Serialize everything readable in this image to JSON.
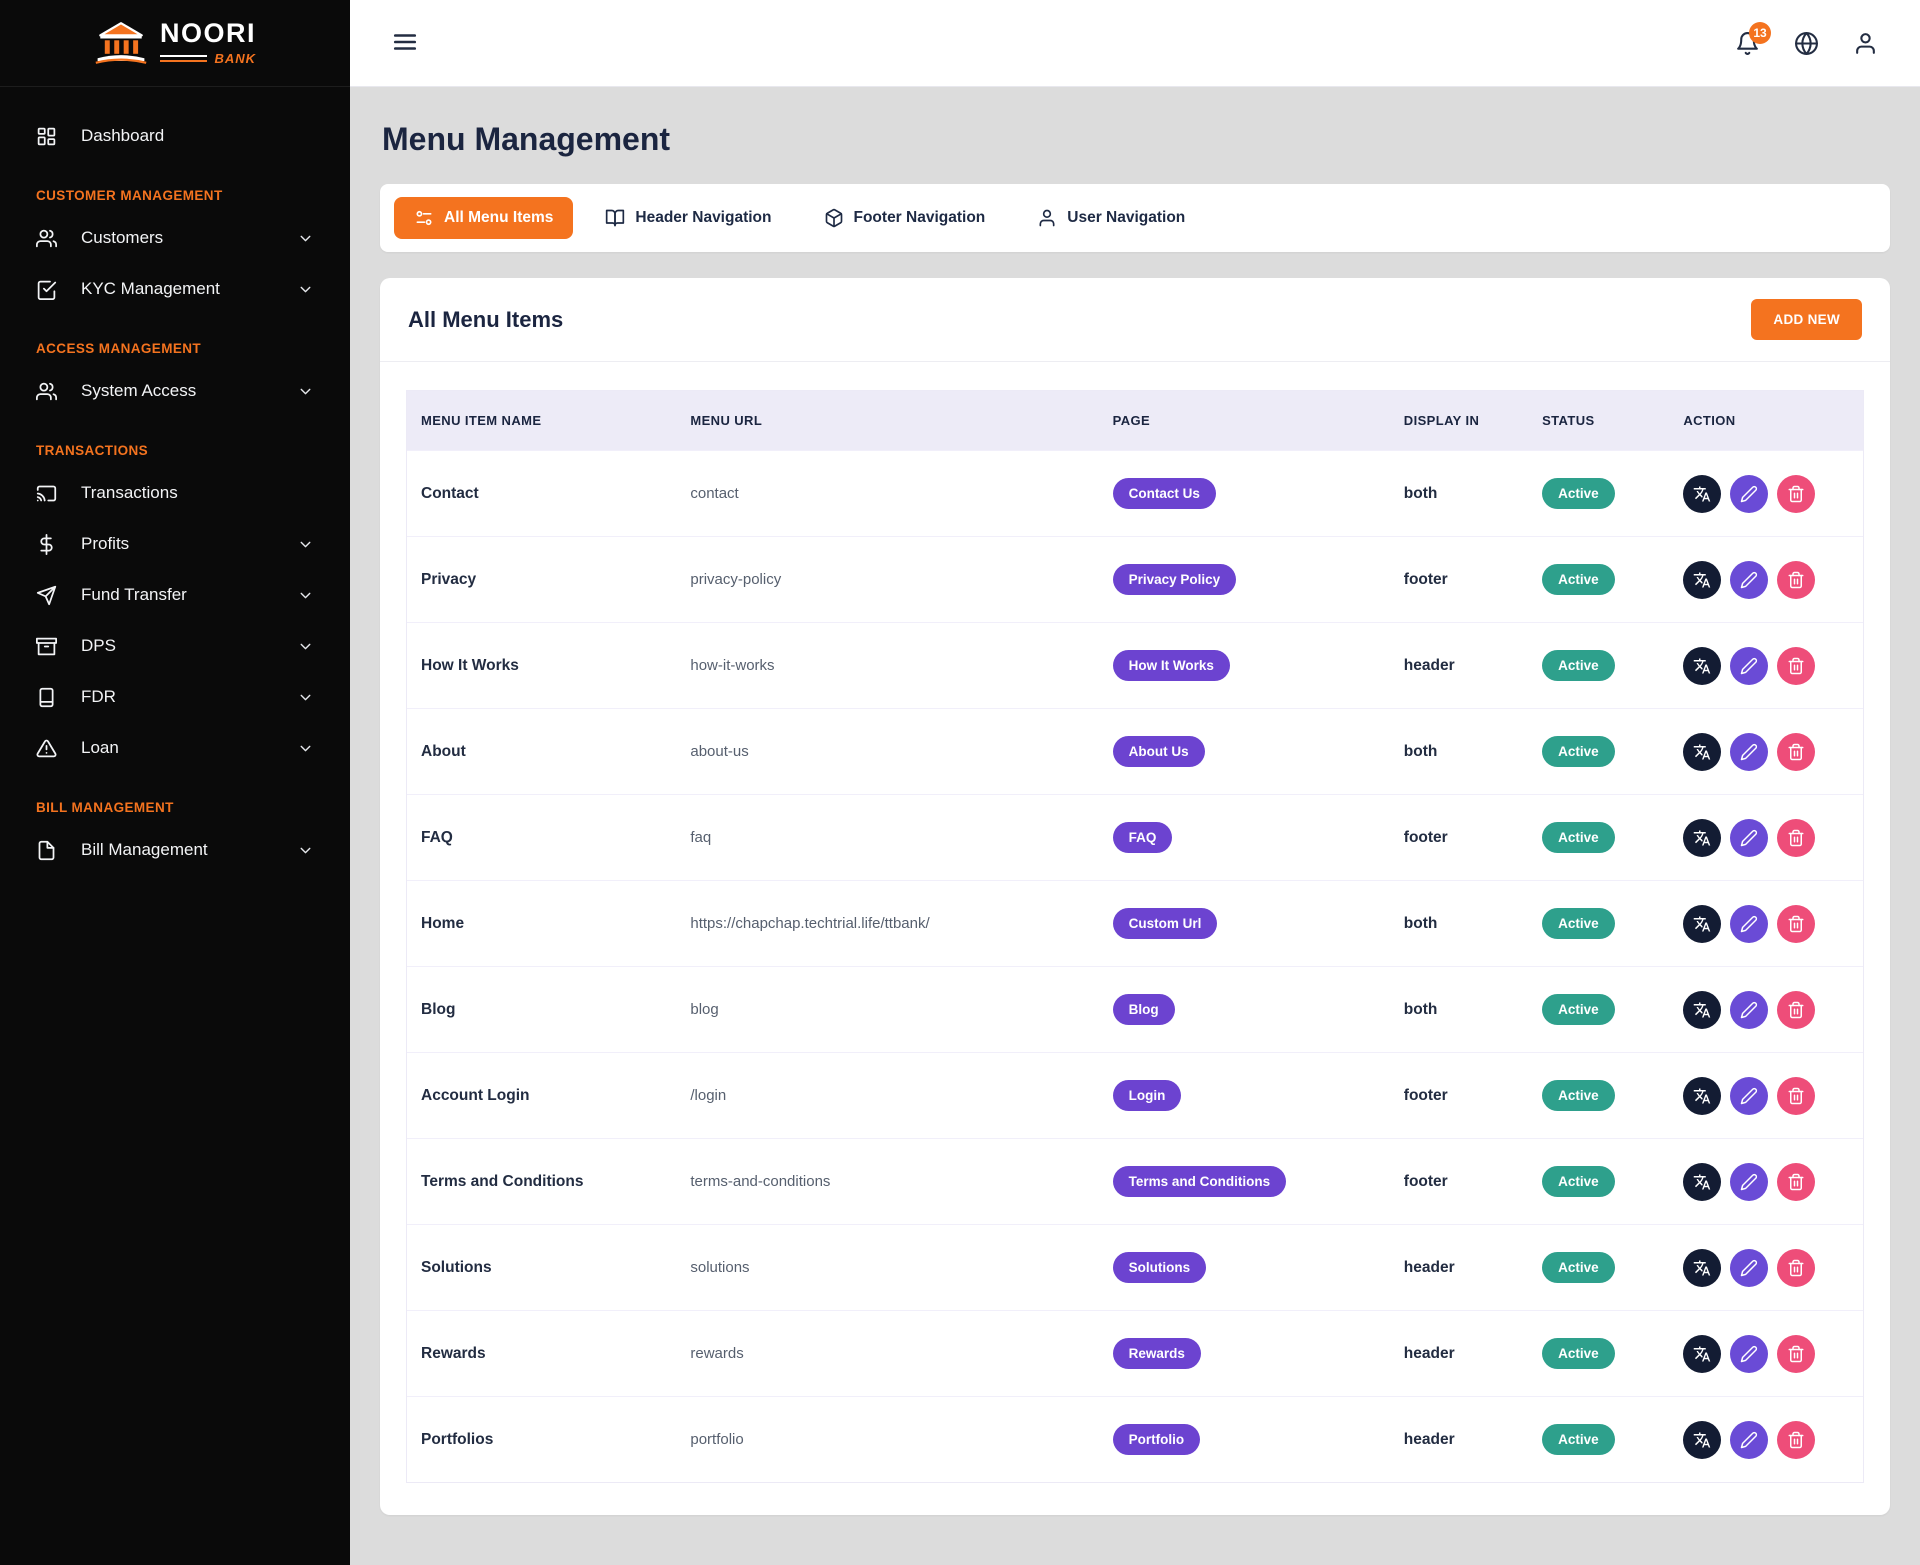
{
  "brand": {
    "name": "NOORI",
    "sub": "BANK"
  },
  "topbar": {
    "notification_count": "13"
  },
  "sidebar": {
    "sections": [
      {
        "title": "",
        "items": [
          {
            "label": "Dashboard",
            "icon": "dashboard",
            "chevron": false
          }
        ]
      },
      {
        "title": "CUSTOMER MANAGEMENT",
        "items": [
          {
            "label": "Customers",
            "icon": "users",
            "chevron": true
          },
          {
            "label": "KYC Management",
            "icon": "check-square",
            "chevron": true
          }
        ]
      },
      {
        "title": "ACCESS MANAGEMENT",
        "items": [
          {
            "label": "System Access",
            "icon": "users",
            "chevron": true
          }
        ]
      },
      {
        "title": "TRANSACTIONS",
        "items": [
          {
            "label": "Transactions",
            "icon": "cast",
            "chevron": false
          },
          {
            "label": "Profits",
            "icon": "dollar",
            "chevron": true
          },
          {
            "label": "Fund Transfer",
            "icon": "send",
            "chevron": true
          },
          {
            "label": "DPS",
            "icon": "archive",
            "chevron": true
          },
          {
            "label": "FDR",
            "icon": "journal",
            "chevron": true
          },
          {
            "label": "Loan",
            "icon": "alert-triangle",
            "chevron": true
          }
        ]
      },
      {
        "title": "BILL MANAGEMENT",
        "items": [
          {
            "label": "Bill Management",
            "icon": "file",
            "chevron": true
          }
        ]
      }
    ]
  },
  "page": {
    "title": "Menu Management"
  },
  "tabs": [
    {
      "label": "All Menu Items",
      "icon": "sliders",
      "active": true
    },
    {
      "label": "Header Navigation",
      "icon": "book-open",
      "active": false
    },
    {
      "label": "Footer Navigation",
      "icon": "box",
      "active": false
    },
    {
      "label": "User Navigation",
      "icon": "user",
      "active": false
    }
  ],
  "panel": {
    "title": "All Menu Items",
    "add_button": "ADD NEW"
  },
  "table": {
    "headers": [
      "MENU ITEM NAME",
      "MENU URL",
      "PAGE",
      "DISPLAY IN",
      "STATUS",
      "ACTION"
    ],
    "rows": [
      {
        "name": "Contact",
        "url": "contact",
        "page": "Contact Us",
        "display_in": "both",
        "status": "Active"
      },
      {
        "name": "Privacy",
        "url": "privacy-policy",
        "page": "Privacy Policy",
        "display_in": "footer",
        "status": "Active"
      },
      {
        "name": "How It Works",
        "url": "how-it-works",
        "page": "How It Works",
        "display_in": "header",
        "status": "Active"
      },
      {
        "name": "About",
        "url": "about-us",
        "page": "About Us",
        "display_in": "both",
        "status": "Active"
      },
      {
        "name": "FAQ",
        "url": "faq",
        "page": "FAQ",
        "display_in": "footer",
        "status": "Active"
      },
      {
        "name": "Home",
        "url": "https://chapchap.techtrial.life/ttbank/",
        "page": "Custom Url",
        "display_in": "both",
        "status": "Active"
      },
      {
        "name": "Blog",
        "url": "blog",
        "page": "Blog",
        "display_in": "both",
        "status": "Active"
      },
      {
        "name": "Account Login",
        "url": "/login",
        "page": "Login",
        "display_in": "footer",
        "status": "Active"
      },
      {
        "name": "Terms and Conditions",
        "url": "terms-and-conditions",
        "page": "Terms and Conditions",
        "display_in": "footer",
        "status": "Active"
      },
      {
        "name": "Solutions",
        "url": "solutions",
        "page": "Solutions",
        "display_in": "header",
        "status": "Active"
      },
      {
        "name": "Rewards",
        "url": "rewards",
        "page": "Rewards",
        "display_in": "header",
        "status": "Active"
      },
      {
        "name": "Portfolios",
        "url": "portfolio",
        "page": "Portfolio",
        "display_in": "header",
        "status": "Active"
      }
    ],
    "actions": [
      "translate",
      "edit",
      "delete"
    ]
  },
  "colors": {
    "accent_orange": "#F4731F",
    "pill_purple": "#6C43D0",
    "status_teal": "#2EA08C",
    "action_dark": "#131C33",
    "action_purple": "#6A4BD6",
    "action_pink": "#EE4D79"
  }
}
